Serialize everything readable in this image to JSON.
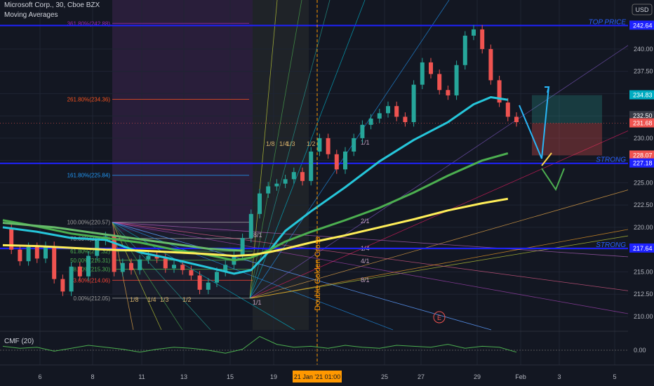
{
  "header": {
    "symbol": "Microsoft Corp., 30, Cboe BZX",
    "indicator": "Moving Averages",
    "currency": "USD",
    "cmf_label": "CMF (20)"
  },
  "colors": {
    "background": "#131722",
    "candle_up": "#26a69a",
    "candle_down": "#ef5350",
    "ma_fast": "#26c6da",
    "ma_mid": "#4caf50",
    "ma_slow": "#ffee58",
    "ma_long": "#66bb6a",
    "level_line": "#1e22ff",
    "cmf": "#4caf50"
  },
  "chart_data": [
    {
      "type": "line",
      "title": "Microsoft Corp., 30, Cboe BZX",
      "x_ticks": [
        "6",
        "8",
        "11",
        "13",
        "15",
        "19",
        "21 Jan '21  01:00",
        "25",
        "27",
        "29",
        "Feb",
        "3",
        "5"
      ],
      "y_ticks": [
        210.0,
        212.5,
        215.0,
        217.5,
        220.0,
        222.5,
        225.0,
        227.5,
        230.0,
        232.5,
        235.0,
        237.5,
        240.0
      ],
      "ylim": [
        208.5,
        245.5
      ],
      "grid": true,
      "price_series": {
        "name": "MSFT",
        "x": [
          0,
          0.5,
          1,
          1.5,
          2,
          2.5,
          3,
          3.5,
          4,
          4.5,
          5,
          5.5,
          6,
          6.5,
          7,
          7.5,
          8,
          8.5,
          9,
          9.5,
          10,
          10.5,
          11,
          11.5,
          12,
          12.5,
          13,
          13.5,
          14,
          14.5,
          15,
          15.5,
          16,
          16.5,
          17,
          17.5,
          18,
          18.5,
          19,
          19.5,
          20,
          20.5,
          21,
          21.5,
          22,
          22.5,
          23,
          23.5,
          24,
          24.5,
          25,
          25.5,
          26,
          26.5,
          27,
          27.5,
          28,
          28.5,
          29,
          29.5,
          30
        ],
        "values": [
          219.8,
          217.5,
          216.2,
          217.8,
          216.5,
          217.9,
          214.2,
          212.8,
          215.6,
          214.5,
          216.8,
          218.5,
          219.0,
          215.0,
          216.0,
          215.2,
          216.4,
          216.8,
          216.5,
          215.4,
          215.8,
          215.2,
          214.6,
          213.0,
          213.8,
          215.0,
          215.8,
          216.8,
          218.8,
          221.5,
          223.8,
          224.6,
          224.9,
          225.4,
          226.2,
          225.2,
          228.5,
          230.0,
          228.2,
          226.5,
          228.5,
          230.0,
          231.5,
          232.2,
          232.8,
          233.6,
          232.4,
          231.8,
          236.0,
          238.5,
          237.2,
          235.4,
          234.8,
          238.2,
          241.5,
          242.2,
          240.0,
          236.5,
          234.0,
          232.4,
          231.8
        ]
      },
      "series": [
        {
          "name": "",
          "color": "#26c6da",
          "x": [
            0,
            2,
            4,
            6,
            8,
            10,
            12,
            13.5,
            14.5,
            15.5,
            16.5,
            18,
            20,
            22,
            24,
            26,
            27.5,
            28.5,
            29.5
          ],
          "values": [
            220.0,
            219.5,
            218.8,
            218.6,
            217.2,
            216.4,
            215.5,
            214.8,
            215.2,
            217.2,
            219.6,
            221.8,
            224.5,
            227.4,
            229.8,
            231.8,
            233.8,
            234.6,
            234.3
          ]
        },
        {
          "name": "",
          "color": "#4caf50",
          "x": [
            0,
            2,
            4,
            6,
            8,
            10,
            12,
            13.5,
            14.5,
            15.5,
            16.5,
            18,
            20,
            22,
            24,
            26,
            28,
            29.5
          ],
          "values": [
            220.8,
            220.1,
            219.3,
            218.8,
            218.3,
            217.5,
            216.9,
            216.3,
            216.6,
            217.4,
            218.4,
            219.5,
            220.8,
            222.2,
            223.9,
            225.8,
            227.5,
            228.3
          ]
        },
        {
          "name": "",
          "color": "#ffee58",
          "x": [
            0,
            2,
            4,
            6,
            8,
            10,
            12,
            13.5,
            14.5,
            15.5,
            16.5,
            18,
            20,
            22,
            24,
            26,
            28,
            29.5
          ],
          "values": [
            218.0,
            217.9,
            217.7,
            217.5,
            217.4,
            217.2,
            217.0,
            216.8,
            216.9,
            217.2,
            217.6,
            218.3,
            219.1,
            220.0,
            220.9,
            221.9,
            222.7,
            223.2
          ]
        },
        {
          "name": "",
          "color": "#66bb6a",
          "x": [
            0,
            3,
            6,
            9,
            12,
            14
          ],
          "values": [
            220.5,
            220.0,
            219.2,
            218.4,
            217.6,
            217.4
          ]
        }
      ],
      "levels": [
        {
          "price": 242.64,
          "label": "TOP PRICE",
          "color": "#1e22ff"
        },
        {
          "price": 227.18,
          "label": "STRONG",
          "color": "#1e22ff"
        },
        {
          "price": 217.64,
          "label": "STRONG",
          "color": "#1e22ff"
        }
      ],
      "fib_levels": [
        {
          "label": "361.80%(242.88)",
          "price": 242.88,
          "color": "#9c27b0"
        },
        {
          "label": "261.80%(234.36)",
          "price": 234.36,
          "color": "#f4511e"
        },
        {
          "label": "161.80%(225.84)",
          "price": 225.84,
          "color": "#2196f3"
        },
        {
          "label": "100.00%(220.57)",
          "price": 220.57,
          "color": "#9e9e9e"
        },
        {
          "label": "78.60%(218.75)",
          "price": 218.75,
          "color": "#9e9e9e"
        },
        {
          "label": "61.80%(217.32)",
          "price": 217.32,
          "color": "#4caf50"
        },
        {
          "label": "50.00%(216.31)",
          "price": 216.31,
          "color": "#4caf50"
        },
        {
          "label": "38.20%(215.30)",
          "price": 215.3,
          "color": "#4caf50"
        },
        {
          "label": "23.60%(214.06)",
          "price": 214.06,
          "color": "#f44336"
        },
        {
          "label": "0.00%(212.05)",
          "price": 212.05,
          "color": "#9e9e9e"
        }
      ],
      "price_labels": [
        {
          "price": 242.64,
          "text": "242.64",
          "bg": "#1e22ff"
        },
        {
          "price": 234.83,
          "text": "234.83",
          "bg": "#00acc1"
        },
        {
          "price": 232.5,
          "text": "232.50",
          "bg": "#363a45"
        },
        {
          "price": 231.68,
          "text": "231.68",
          "bg": "#ef5350"
        },
        {
          "price": 228.07,
          "text": "228.07",
          "bg": "#ef5350"
        },
        {
          "price": 227.18,
          "text": "227.18",
          "bg": "#1e22ff"
        },
        {
          "price": 217.64,
          "text": "217.64",
          "bg": "#1e22ff"
        }
      ],
      "gann_left_labels": [
        "1/8",
        "1/4",
        "1/3",
        "1/2"
      ],
      "gann_top_labels": [
        "1/8",
        "1/4",
        "1/3",
        "1/2"
      ],
      "gann_ratio_labels": [
        "8/1",
        "1/1",
        "2/1",
        "4/1",
        "8/1"
      ],
      "gann_fan_lower_labels": [
        "1/1",
        "1/4"
      ],
      "annotation": "Double Golden Cross",
      "earnings_marker": "E"
    },
    {
      "type": "line",
      "title": "CMF (20)",
      "y_ticks": [
        0.0
      ],
      "x": [
        0,
        1,
        2,
        3,
        4,
        5,
        6,
        7,
        8,
        9,
        10,
        11,
        12,
        13,
        14,
        15,
        16,
        17,
        18,
        19,
        20,
        21,
        22,
        23,
        24,
        25,
        26,
        27,
        28,
        29,
        30
      ],
      "values": [
        0.04,
        0.02,
        0.03,
        -0.01,
        0.02,
        0.05,
        0.03,
        0.01,
        -0.02,
        0.01,
        0.03,
        0.02,
        0.0,
        -0.03,
        0.01,
        0.14,
        0.06,
        0.03,
        0.04,
        0.02,
        0.05,
        0.03,
        0.02,
        0.05,
        0.04,
        0.03,
        0.06,
        0.02,
        0.04,
        0.03,
        -0.02
      ]
    }
  ]
}
